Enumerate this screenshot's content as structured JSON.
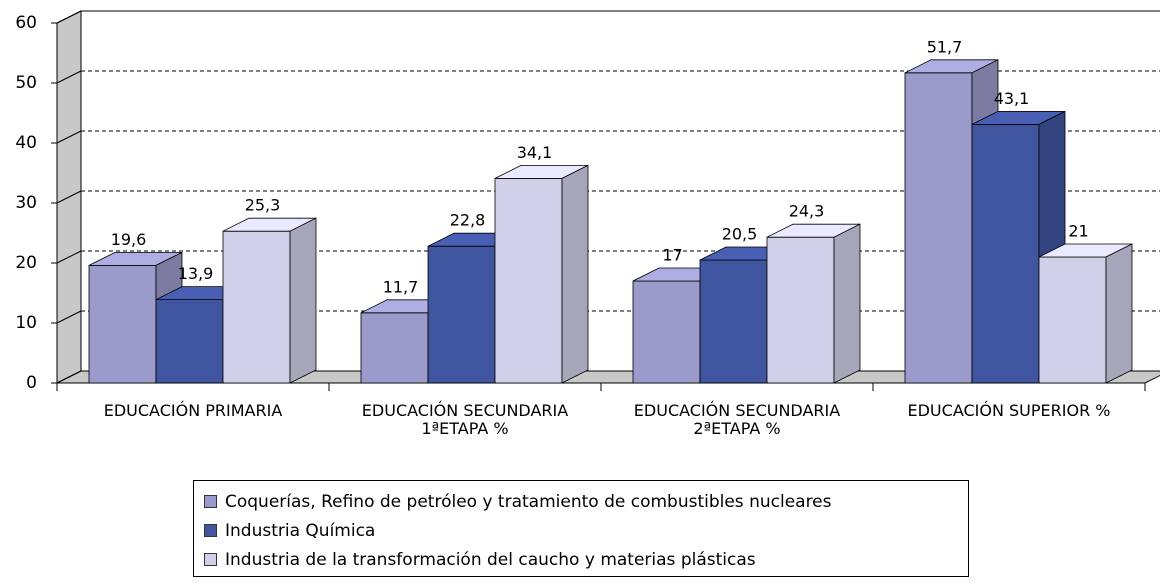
{
  "chart_data": {
    "type": "bar3d",
    "categories": [
      "EDUCACIÓN PRIMARIA",
      "EDUCACIÓN SECUNDARIA\n1ªETAPA %",
      "EDUCACIÓN SECUNDARIA\n2ªETAPA %",
      "EDUCACIÓN SUPERIOR %"
    ],
    "series": [
      {
        "name": "Coquerías, Refino de petróleo y tratamiento de combustibles nucleares",
        "color": "#9b9bcb",
        "values": [
          19.6,
          11.7,
          17,
          51.7
        ],
        "value_labels": [
          "19,6",
          "11,7",
          "17",
          "51,7"
        ]
      },
      {
        "name": "Industria Química",
        "color": "#4055a0",
        "values": [
          13.9,
          22.8,
          20.5,
          43.1
        ],
        "value_labels": [
          "13,9",
          "22,8",
          "20,5",
          "43,1"
        ]
      },
      {
        "name": "Industria de la transformación del caucho y materias plásticas",
        "color": "#d0d0e8",
        "values": [
          25.3,
          34.1,
          24.3,
          21
        ],
        "value_labels": [
          "25,3",
          "34,1",
          "24,3",
          "21"
        ]
      }
    ],
    "ylim": [
      0,
      60
    ],
    "yticks": [
      0,
      10,
      20,
      30,
      40,
      50,
      60
    ],
    "grid": true,
    "legend": "bottom"
  }
}
